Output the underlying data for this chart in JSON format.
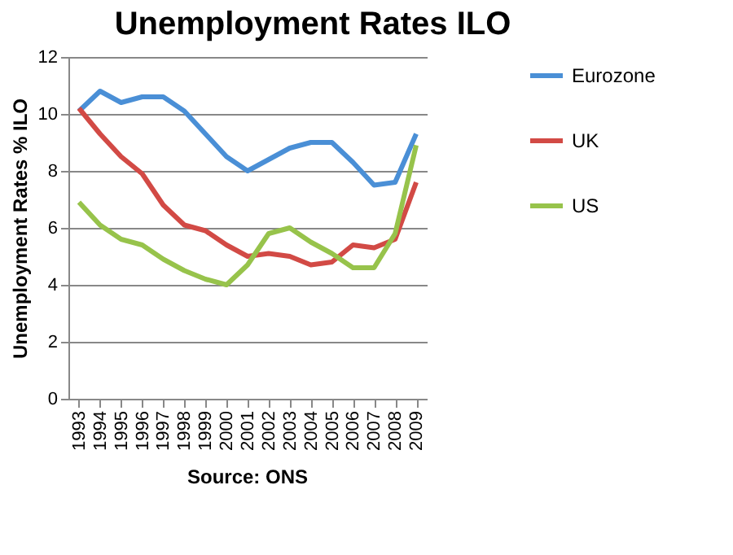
{
  "chart_data": {
    "type": "line",
    "title": "Unemployment Rates ILO",
    "ylabel": "Unemployment Rates % ILO",
    "categories": [
      "1993",
      "1994",
      "1995",
      "1996",
      "1997",
      "1998",
      "1999",
      "2000",
      "2001",
      "2002",
      "2003",
      "2004",
      "2005",
      "2006",
      "2007",
      "2008",
      "2009"
    ],
    "series": [
      {
        "name": "Eurozone",
        "color": "#4a8fd6",
        "values": [
          10.1,
          10.8,
          10.4,
          10.6,
          10.6,
          10.1,
          9.3,
          8.5,
          8.0,
          8.4,
          8.8,
          9.0,
          9.0,
          8.3,
          7.5,
          7.6,
          9.3
        ]
      },
      {
        "name": "UK",
        "color": "#d24a45",
        "values": [
          10.2,
          9.3,
          8.5,
          7.9,
          6.8,
          6.1,
          5.9,
          5.4,
          5.0,
          5.1,
          5.0,
          4.7,
          4.8,
          5.4,
          5.3,
          5.6,
          7.6
        ]
      },
      {
        "name": "US",
        "color": "#97c34b",
        "values": [
          6.9,
          6.1,
          5.6,
          5.4,
          4.9,
          4.5,
          4.2,
          4.0,
          4.7,
          5.8,
          6.0,
          5.5,
          5.1,
          4.6,
          4.6,
          5.8,
          8.9
        ]
      }
    ],
    "ylim": [
      0,
      12
    ],
    "yticks": [
      0,
      2,
      4,
      6,
      8,
      10,
      12
    ],
    "grid": "y",
    "legend": "right",
    "marker": "none",
    "line_style": "solid",
    "annotations": [
      "Source: ONS"
    ]
  }
}
